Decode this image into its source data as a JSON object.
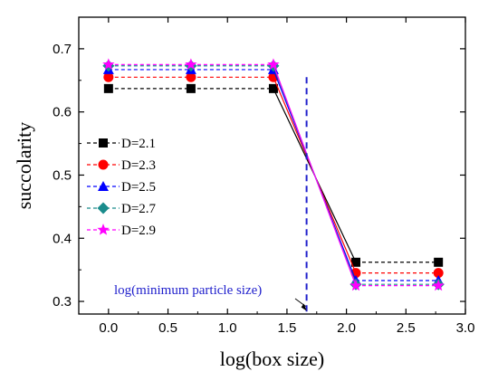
{
  "chart_data": {
    "type": "line",
    "title": "",
    "xlabel": "log(box size)",
    "ylabel": "succolarity",
    "xlim": [
      -0.25,
      3.0
    ],
    "ylim": [
      0.28,
      0.75
    ],
    "xticks": [
      0.0,
      0.5,
      1.0,
      1.5,
      2.0,
      2.5,
      3.0
    ],
    "xtick_labels": [
      "0.0",
      "0.5",
      "1.0",
      "1.5",
      "2.0",
      "2.5",
      "3.0"
    ],
    "yticks": [
      0.3,
      0.4,
      0.5,
      0.6,
      0.7
    ],
    "ytick_labels": [
      "0.3",
      "0.4",
      "0.5",
      "0.6",
      "0.7"
    ],
    "x": [
      0.0,
      0.693,
      1.386,
      2.079,
      2.773
    ],
    "series": [
      {
        "name": "D=2.1",
        "color": "#000000",
        "marker": "square",
        "values": [
          0.637,
          0.637,
          0.637,
          0.362,
          0.362
        ]
      },
      {
        "name": "D=2.3",
        "color": "#ff0000",
        "marker": "circle",
        "values": [
          0.655,
          0.655,
          0.655,
          0.345,
          0.345
        ]
      },
      {
        "name": "D=2.5",
        "color": "#0000ff",
        "marker": "triangle",
        "values": [
          0.667,
          0.667,
          0.667,
          0.333,
          0.333
        ]
      },
      {
        "name": "D=2.7",
        "color": "#1a8c8c",
        "marker": "diamond",
        "values": [
          0.673,
          0.673,
          0.673,
          0.327,
          0.327
        ]
      },
      {
        "name": "D=2.9",
        "color": "#ff00ff",
        "marker": "star",
        "values": [
          0.675,
          0.675,
          0.675,
          0.325,
          0.325
        ]
      }
    ],
    "vertical_line": {
      "x": 1.665,
      "color": "#1f1fcc"
    },
    "annotation": {
      "text": "log(minimum particle size)",
      "arrow_to": [
        1.665,
        0.285
      ]
    },
    "legend_position": "left",
    "grid": false
  }
}
